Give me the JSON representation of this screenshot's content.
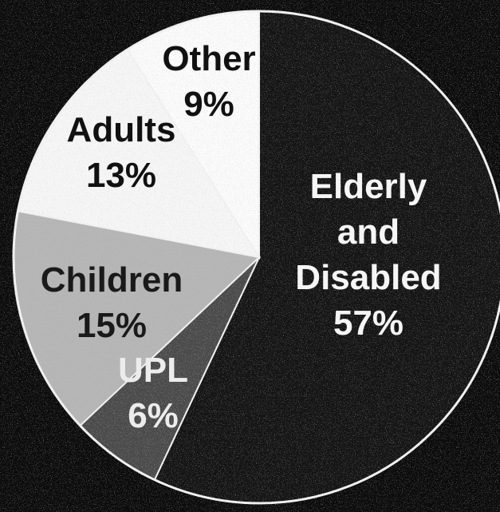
{
  "chart_data": {
    "type": "pie",
    "slices": [
      {
        "name": "Elderly and Disabled",
        "value": 57,
        "value_label": "57%",
        "color": "#141414",
        "text_color": "#f5f5f5",
        "label_lines": [
          "Elderly",
          "and",
          "Disabled"
        ]
      },
      {
        "name": "UPL",
        "value": 6,
        "value_label": "6%",
        "color": "#4a4a4a",
        "text_color": "#ececec",
        "label_lines": [
          "UPL"
        ]
      },
      {
        "name": "Children",
        "value": 15,
        "value_label": "15%",
        "color": "#b5b5b5",
        "text_color": "#1a1a1a",
        "label_lines": [
          "Children"
        ]
      },
      {
        "name": "Adults",
        "value": 13,
        "value_label": "13%",
        "color": "#f6f6f6",
        "text_color": "#111111",
        "label_lines": [
          "Adults"
        ]
      },
      {
        "name": "Other",
        "value": 9,
        "value_label": "9%",
        "color": "#fbfbfb",
        "text_color": "#111111",
        "label_lines": [
          "Other"
        ]
      }
    ],
    "start_angle_deg": 0,
    "direction": "clockwise",
    "background_color": "#0b0b0b"
  }
}
